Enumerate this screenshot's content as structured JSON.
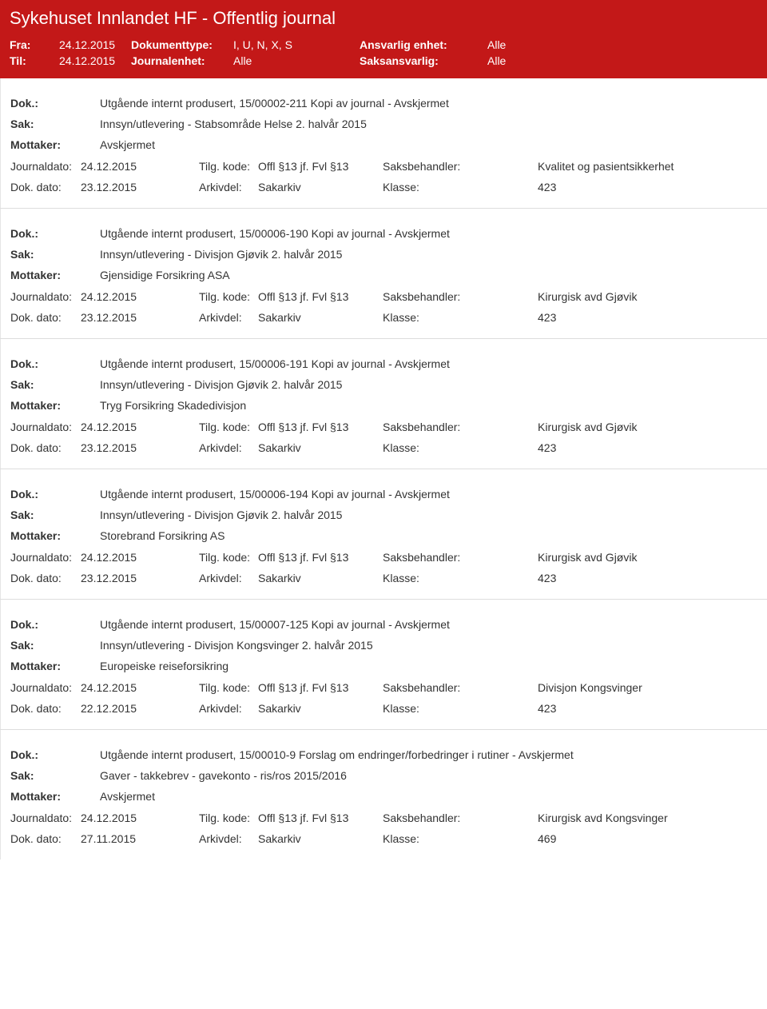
{
  "header": {
    "title": "Sykehuset Innlandet HF - Offentlig journal",
    "row1": {
      "label1": "Fra:",
      "val1": "24.12.2015",
      "label2": "Dokumenttype:",
      "val2": "I, U, N, X, S",
      "label3": "Ansvarlig enhet:",
      "val3": "Alle"
    },
    "row2": {
      "label1": "Til:",
      "val1": "24.12.2015",
      "label2": "Journalenhet:",
      "val2": "Alle",
      "label3": "Saksansvarlig:",
      "val3": "Alle"
    }
  },
  "labels": {
    "dok": "Dok.:",
    "sak": "Sak:",
    "mottaker": "Mottaker:",
    "journaldato": "Journaldato:",
    "tilgkode": "Tilg. kode:",
    "saksbehandler": "Saksbehandler:",
    "dokdato": "Dok. dato:",
    "arkivdel": "Arkivdel:",
    "klasse": "Klasse:"
  },
  "entries": [
    {
      "dok": "Utgående internt produsert, 15/00002-211 Kopi av journal - Avskjermet",
      "sak": "Innsyn/utlevering - Stabsområde Helse 2. halvår 2015",
      "mottaker": "Avskjermet",
      "journaldato": "24.12.2015",
      "tilgkode": "Offl §13 jf. Fvl §13",
      "saksbehandler": "Kvalitet og pasientsikkerhet",
      "dokdato": "23.12.2015",
      "arkivdel": "Sakarkiv",
      "klasse": "423"
    },
    {
      "dok": "Utgående internt produsert, 15/00006-190 Kopi av journal - Avskjermet",
      "sak": "Innsyn/utlevering - Divisjon Gjøvik 2. halvår 2015",
      "mottaker": "Gjensidige Forsikring ASA",
      "journaldato": "24.12.2015",
      "tilgkode": "Offl §13 jf. Fvl §13",
      "saksbehandler": "Kirurgisk avd Gjøvik",
      "dokdato": "23.12.2015",
      "arkivdel": "Sakarkiv",
      "klasse": "423"
    },
    {
      "dok": "Utgående internt produsert, 15/00006-191 Kopi av journal - Avskjermet",
      "sak": "Innsyn/utlevering - Divisjon Gjøvik 2. halvår 2015",
      "mottaker": "Tryg Forsikring Skadedivisjon",
      "journaldato": "24.12.2015",
      "tilgkode": "Offl §13 jf. Fvl §13",
      "saksbehandler": "Kirurgisk avd Gjøvik",
      "dokdato": "23.12.2015",
      "arkivdel": "Sakarkiv",
      "klasse": "423"
    },
    {
      "dok": "Utgående internt produsert, 15/00006-194 Kopi av journal - Avskjermet",
      "sak": "Innsyn/utlevering - Divisjon Gjøvik 2. halvår 2015",
      "mottaker": "Storebrand Forsikring AS",
      "journaldato": "24.12.2015",
      "tilgkode": "Offl §13 jf. Fvl §13",
      "saksbehandler": "Kirurgisk avd Gjøvik",
      "dokdato": "23.12.2015",
      "arkivdel": "Sakarkiv",
      "klasse": "423"
    },
    {
      "dok": "Utgående internt produsert, 15/00007-125 Kopi av journal - Avskjermet",
      "sak": "Innsyn/utlevering - Divisjon Kongsvinger 2. halvår 2015",
      "mottaker": "Europeiske reiseforsikring",
      "journaldato": "24.12.2015",
      "tilgkode": "Offl §13 jf. Fvl §13",
      "saksbehandler": "Divisjon Kongsvinger",
      "dokdato": "22.12.2015",
      "arkivdel": "Sakarkiv",
      "klasse": "423"
    },
    {
      "dok": "Utgående internt produsert, 15/00010-9 Forslag om endringer/forbedringer i rutiner - Avskjermet",
      "sak": "Gaver - takkebrev - gavekonto - ris/ros 2015/2016",
      "mottaker": "Avskjermet",
      "journaldato": "24.12.2015",
      "tilgkode": "Offl §13 jf. Fvl §13",
      "saksbehandler": "Kirurgisk avd Kongsvinger",
      "dokdato": "27.11.2015",
      "arkivdel": "Sakarkiv",
      "klasse": "469"
    }
  ]
}
